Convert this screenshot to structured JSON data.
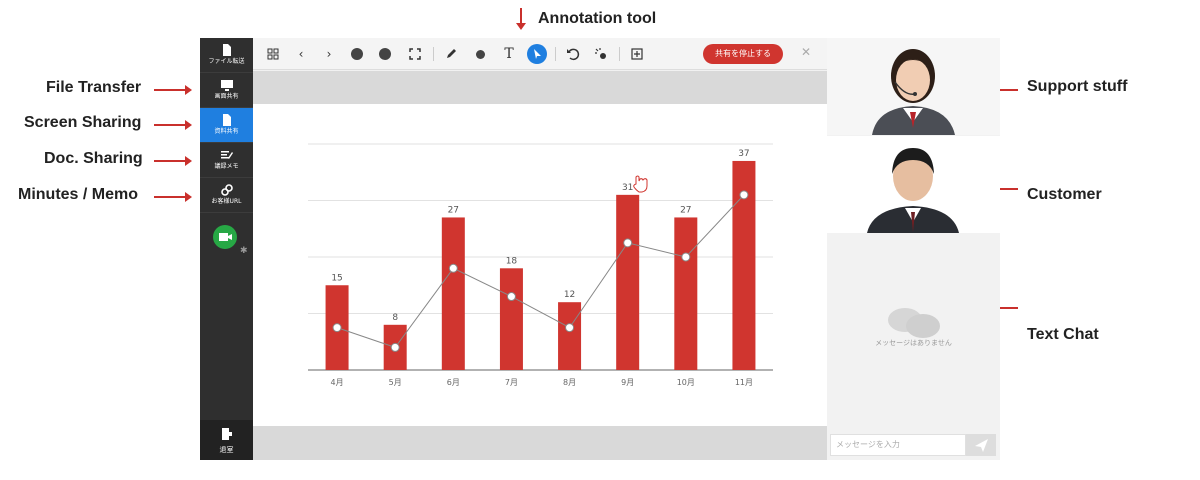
{
  "callouts": {
    "annotation_tool": "Annotation tool",
    "file_transfer": "File Transfer",
    "screen_sharing": "Screen Sharing",
    "doc_sharing": "Doc. Sharing",
    "minutes_memo": "Minutes / Memo",
    "support_staff": "Support stuff",
    "customer": "Customer",
    "text_chat": "Text Chat"
  },
  "sidebar": {
    "items": [
      {
        "label": "ファイル転送",
        "icon": "file-icon"
      },
      {
        "label": "画面共有",
        "icon": "monitor-icon"
      },
      {
        "label": "資料共有",
        "icon": "document-icon"
      },
      {
        "label": "議録メモ",
        "icon": "memo-icon"
      },
      {
        "label": "お客様URL",
        "icon": "link-icon"
      }
    ],
    "exit_label": "退室"
  },
  "toolbar": {
    "stop_label": "共有を停止する",
    "text_tool": "T"
  },
  "chat": {
    "empty_text": "メッセージはありません",
    "input_placeholder": "メッセージを入力"
  },
  "colors": {
    "accent": "#1f7fe0",
    "bar": "#d0352f",
    "sidebar": "#2f2f2f"
  },
  "chart_data": {
    "type": "bar",
    "categories": [
      "4月",
      "5月",
      "6月",
      "7月",
      "8月",
      "9月",
      "10月",
      "11月"
    ],
    "series": [
      {
        "type": "bar",
        "values": [
          15,
          8,
          27,
          18,
          12,
          31,
          27,
          37
        ]
      },
      {
        "type": "line",
        "values": [
          7.5,
          4,
          18,
          13,
          7.5,
          22.5,
          20,
          31
        ]
      }
    ],
    "ylim": [
      0,
      40
    ],
    "grid": true
  }
}
